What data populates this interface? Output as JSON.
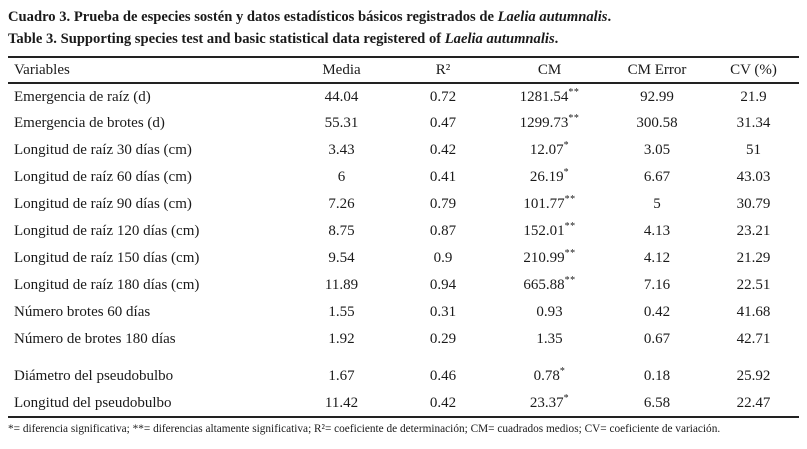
{
  "caption": {
    "es_prefix": "Cuadro 3. Prueba de especies sostén y datos estadísticos básicos registrados de ",
    "es_species": "Laelia autumnalis",
    "es_suffix": ".",
    "en_prefix": "Table 3. Supporting species test and basic statistical data registered of ",
    "en_species": "Laelia autumnalis",
    "en_suffix": "."
  },
  "table": {
    "headers": [
      "Variables",
      "Media",
      "R²",
      "CM",
      "CM Error",
      "CV (%)"
    ],
    "rows": [
      {
        "variable": "Emergencia de raíz (d)",
        "media": "44.04",
        "r2": "0.72",
        "cm": "1281.54",
        "cm_sig": "**",
        "cm_error": "92.99",
        "cv": "21.9"
      },
      {
        "variable": "Emergencia de brotes (d)",
        "media": "55.31",
        "r2": "0.47",
        "cm": "1299.73",
        "cm_sig": "**",
        "cm_error": "300.58",
        "cv": "31.34"
      },
      {
        "variable": "Longitud de raíz 30 días (cm)",
        "media": "3.43",
        "r2": "0.42",
        "cm": "12.07",
        "cm_sig": "*",
        "cm_error": "3.05",
        "cv": "51"
      },
      {
        "variable": "Longitud de raíz 60 días (cm)",
        "media": "6",
        "r2": "0.41",
        "cm": "26.19",
        "cm_sig": "*",
        "cm_error": "6.67",
        "cv": "43.03"
      },
      {
        "variable": "Longitud de raíz 90 días (cm)",
        "media": "7.26",
        "r2": "0.79",
        "cm": "101.77",
        "cm_sig": "**",
        "cm_error": "5",
        "cv": "30.79"
      },
      {
        "variable": "Longitud de raíz 120 días (cm)",
        "media": "8.75",
        "r2": "0.87",
        "cm": "152.01",
        "cm_sig": "**",
        "cm_error": "4.13",
        "cv": "23.21"
      },
      {
        "variable": "Longitud de raíz 150 días (cm)",
        "media": "9.54",
        "r2": "0.9",
        "cm": "210.99",
        "cm_sig": "**",
        "cm_error": "4.12",
        "cv": "21.29"
      },
      {
        "variable": "Longitud de raíz 180 días (cm)",
        "media": "11.89",
        "r2": "0.94",
        "cm": "665.88",
        "cm_sig": "**",
        "cm_error": "7.16",
        "cv": "22.51"
      },
      {
        "variable": "Número brotes 60 días",
        "media": "1.55",
        "r2": "0.31",
        "cm": "0.93",
        "cm_sig": "",
        "cm_error": "0.42",
        "cv": "41.68"
      },
      {
        "variable": "Número de brotes 180 días",
        "media": "1.92",
        "r2": "0.29",
        "cm": "1.35",
        "cm_sig": "",
        "cm_error": "0.67",
        "cv": "42.71"
      },
      {
        "variable": "Diámetro del pseudobulbo",
        "media": "1.67",
        "r2": "0.46",
        "cm": "0.78",
        "cm_sig": "*",
        "cm_error": "0.18",
        "cv": "25.92"
      },
      {
        "variable": "Longitud del pseudobulbo",
        "media": "11.42",
        "r2": "0.42",
        "cm": "23.37",
        "cm_sig": "*",
        "cm_error": "6.58",
        "cv": "22.47"
      }
    ],
    "footnote": "*= diferencia significativa; **= diferencias altamente significativa; R²= coeficiente de determinación; CM= cuadrados medios; CV= coeficiente de variación."
  }
}
